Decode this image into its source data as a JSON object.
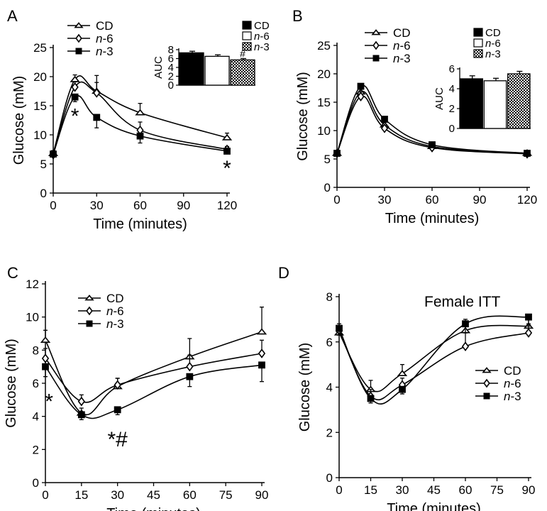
{
  "chart_data": [
    {
      "panel_label": "A",
      "type": "line",
      "xlabel": "Time (minutes)",
      "ylabel": "Glucose (mM)",
      "xlim": [
        0,
        120
      ],
      "ylim": [
        0,
        25
      ],
      "xticks": [
        0,
        30,
        60,
        90,
        120
      ],
      "yticks": [
        0,
        5,
        10,
        15,
        20,
        25
      ],
      "x": [
        0,
        15,
        30,
        60,
        120
      ],
      "series": [
        {
          "name": "CD",
          "marker": "triangle",
          "values": [
            6.8,
            19.5,
            17.5,
            13.8,
            9.5
          ],
          "errors": [
            0.5,
            0.8,
            1.5,
            1.6,
            0.8
          ]
        },
        {
          "name": "n-6",
          "marker": "diamond",
          "values": [
            6.6,
            18.2,
            17.2,
            10.8,
            7.5
          ],
          "errors": [
            0.5,
            0.9,
            3.0,
            1.4,
            0.5
          ]
        },
        {
          "name": "n-3",
          "marker": "square",
          "values": [
            6.7,
            16.5,
            13.0,
            9.8,
            7.2
          ],
          "errors": [
            0.4,
            0.8,
            1.8,
            1.2,
            0.4
          ]
        }
      ],
      "legend_labels": [
        "CD",
        "n-6",
        "n-3"
      ],
      "annotations": [
        {
          "text": "*",
          "x": 15,
          "y": 13.5
        },
        {
          "text": "*",
          "x": 120,
          "y": 4.5
        }
      ],
      "inset": {
        "type": "bar",
        "ylabel": "AUC",
        "ylim": [
          0,
          8
        ],
        "yticks": [
          0,
          2,
          4,
          6,
          8
        ],
        "categories": [
          "CD",
          "n-6",
          "n-3"
        ],
        "values": [
          7.3,
          6.5,
          5.7
        ],
        "errors": [
          0.35,
          0.35,
          0.3
        ],
        "legend_labels": [
          "CD",
          "n-6",
          "n-3"
        ],
        "annotation": "#"
      }
    },
    {
      "panel_label": "B",
      "type": "line",
      "xlabel": "Time (minutes)",
      "ylabel": "Glucose (mM)",
      "xlim": [
        0,
        120
      ],
      "ylim": [
        0,
        25
      ],
      "xticks": [
        0,
        30,
        60,
        90,
        120
      ],
      "yticks": [
        0,
        5,
        10,
        15,
        20,
        25
      ],
      "x": [
        0,
        15,
        30,
        60,
        120
      ],
      "series": [
        {
          "name": "CD",
          "marker": "triangle",
          "values": [
            6.0,
            16.8,
            11.0,
            7.2,
            6.0
          ],
          "errors": [
            0.3,
            0.8,
            0.5,
            0.4,
            0.3
          ]
        },
        {
          "name": "n-6",
          "marker": "diamond",
          "values": [
            6.0,
            16.0,
            10.4,
            7.0,
            5.9
          ],
          "errors": [
            0.3,
            1.5,
            0.5,
            0.4,
            0.3
          ]
        },
        {
          "name": "n-3",
          "marker": "square",
          "values": [
            6.0,
            17.8,
            12.0,
            7.5,
            6.0
          ],
          "errors": [
            0.3,
            1.0,
            0.5,
            0.4,
            0.3
          ]
        }
      ],
      "legend_labels": [
        "CD",
        "n-6",
        "n-3"
      ],
      "annotations": [],
      "inset": {
        "type": "bar",
        "ylabel": "AUC",
        "ylim": [
          0,
          6
        ],
        "yticks": [
          0,
          2,
          4,
          6
        ],
        "categories": [
          "CD",
          "n-6",
          "n-3"
        ],
        "values": [
          5.0,
          4.8,
          5.5
        ],
        "errors": [
          0.3,
          0.25,
          0.25
        ],
        "legend_labels": [
          "CD",
          "n-6",
          "n-3"
        ],
        "annotation": ""
      }
    },
    {
      "panel_label": "C",
      "type": "line",
      "xlabel": "Time (minutes)",
      "ylabel": "Glucose (mM)",
      "xlim": [
        0,
        90
      ],
      "ylim": [
        0,
        12
      ],
      "xticks": [
        0,
        15,
        30,
        45,
        60,
        75,
        90
      ],
      "yticks": [
        0,
        2,
        4,
        6,
        8,
        10,
        12
      ],
      "x": [
        0,
        15,
        30,
        60,
        90
      ],
      "series": [
        {
          "name": "CD",
          "marker": "triangle",
          "values": [
            8.6,
            4.2,
            5.8,
            7.6,
            9.1
          ],
          "errors": [
            0.6,
            0.3,
            0.5,
            1.1,
            1.5
          ]
        },
        {
          "name": "n-6",
          "marker": "diamond",
          "values": [
            7.5,
            4.9,
            5.9,
            7.0,
            7.8
          ],
          "errors": [
            0.6,
            0.4,
            0.4,
            0.7,
            0.8
          ]
        },
        {
          "name": "n-3",
          "marker": "square",
          "values": [
            7.0,
            4.1,
            4.4,
            6.4,
            7.1
          ],
          "errors": [
            0.6,
            0.3,
            0.3,
            0.6,
            1.0
          ]
        }
      ],
      "legend_labels": [
        "CD",
        "n-6",
        "n-3"
      ],
      "annotations": [
        {
          "text": "*",
          "x": 1.5,
          "y": 5.0
        },
        {
          "text": "*#",
          "x": 30,
          "y": 2.7
        }
      ]
    },
    {
      "panel_label": "D",
      "title": "Female ITT",
      "type": "line",
      "xlabel": "Time (minutes)",
      "ylabel": "Glucose (mM)",
      "xlim": [
        0,
        90
      ],
      "ylim": [
        0,
        8
      ],
      "xticks": [
        0,
        15,
        30,
        45,
        60,
        75,
        90
      ],
      "yticks": [
        0,
        2,
        4,
        6,
        8
      ],
      "x": [
        0,
        15,
        30,
        60,
        90
      ],
      "series": [
        {
          "name": "CD",
          "marker": "triangle",
          "values": [
            6.4,
            3.9,
            4.6,
            6.5,
            6.7
          ],
          "errors": [
            0.3,
            0.4,
            0.4,
            0.5,
            0.4
          ]
        },
        {
          "name": "n-6",
          "marker": "diamond",
          "values": [
            6.5,
            3.6,
            4.1,
            5.8,
            6.4
          ],
          "errors": [
            0.3,
            0.3,
            0.3,
            0.6,
            0.4
          ]
        },
        {
          "name": "n-3",
          "marker": "square",
          "values": [
            6.6,
            3.5,
            3.9,
            6.8,
            7.1
          ],
          "errors": [
            0.3,
            0.2,
            0.2,
            0.4,
            0.4
          ]
        }
      ],
      "legend_labels": [
        "CD",
        "n-6",
        "n-3"
      ],
      "annotations": []
    }
  ]
}
